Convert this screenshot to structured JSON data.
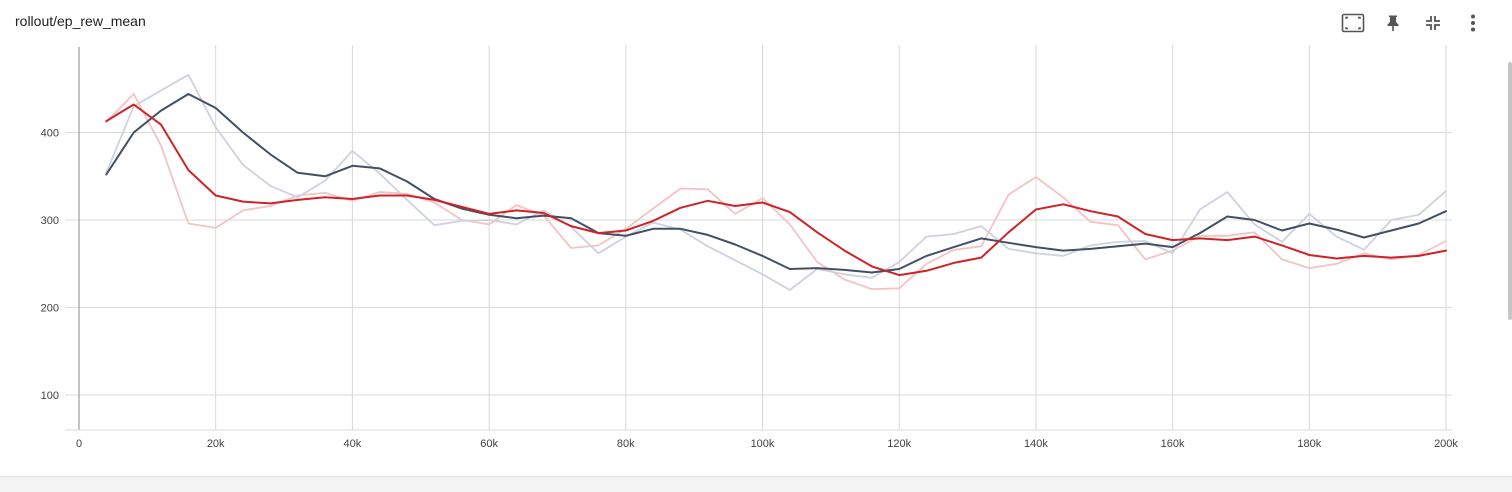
{
  "card": {
    "title": "rollout/ep_rew_mean"
  },
  "toolbar": {
    "icons": [
      "fit-domain-icon",
      "pin-icon",
      "collapse-icon",
      "more-vert-icon"
    ]
  },
  "chart_data": {
    "type": "line",
    "title": "rollout/ep_rew_mean",
    "xlabel": "",
    "ylabel": "",
    "xlim": [
      0,
      200000
    ],
    "ylim": [
      60,
      500
    ],
    "grid": true,
    "x_ticks": [
      {
        "value": 0,
        "label": "0"
      },
      {
        "value": 20000,
        "label": "20k"
      },
      {
        "value": 40000,
        "label": "40k"
      },
      {
        "value": 60000,
        "label": "60k"
      },
      {
        "value": 80000,
        "label": "80k"
      },
      {
        "value": 100000,
        "label": "100k"
      },
      {
        "value": 120000,
        "label": "120k"
      },
      {
        "value": 140000,
        "label": "140k"
      },
      {
        "value": 160000,
        "label": "160k"
      },
      {
        "value": 180000,
        "label": "180k"
      },
      {
        "value": 200000,
        "label": "200k"
      }
    ],
    "y_ticks": [
      {
        "value": 100,
        "label": "100"
      },
      {
        "value": 200,
        "label": "200"
      },
      {
        "value": 300,
        "label": "300"
      },
      {
        "value": 400,
        "label": "400"
      }
    ],
    "x": [
      4000,
      8000,
      12000,
      16000,
      20000,
      24000,
      28000,
      32000,
      36000,
      40000,
      44000,
      48000,
      52000,
      56000,
      60000,
      64000,
      68000,
      72000,
      76000,
      80000,
      84000,
      88000,
      92000,
      96000,
      100000,
      104000,
      108000,
      112000,
      116000,
      120000,
      124000,
      128000,
      132000,
      136000,
      140000,
      144000,
      148000,
      152000,
      156000,
      160000,
      164000,
      168000,
      172000,
      176000,
      180000,
      184000,
      188000,
      192000,
      196000,
      200000
    ],
    "series": [
      {
        "key": "red_raw",
        "color": "#f4c3c3",
        "width": 1.8,
        "values": [
          412,
          444,
          385,
          296,
          291,
          311,
          316,
          328,
          331,
          322,
          332,
          330,
          320,
          300,
          295,
          317,
          305,
          268,
          271,
          290,
          313,
          336,
          335,
          307,
          325,
          295,
          252,
          232,
          221,
          222,
          250,
          266,
          270,
          329,
          349,
          326,
          298,
          294,
          255,
          265,
          282,
          282,
          286,
          255,
          245,
          250,
          262,
          255,
          260,
          276
        ]
      },
      {
        "key": "navy_raw",
        "color": "#ced2df",
        "width": 1.8,
        "values": [
          354,
          430,
          448,
          466,
          406,
          363,
          339,
          326,
          345,
          379,
          353,
          323,
          294,
          299,
          300,
          295,
          311,
          292,
          262,
          281,
          297,
          289,
          270,
          254,
          238,
          220,
          244,
          238,
          234,
          252,
          281,
          284,
          293,
          267,
          262,
          259,
          271,
          275,
          276,
          262,
          312,
          332,
          295,
          275,
          307,
          281,
          266,
          300,
          306,
          333
        ]
      },
      {
        "key": "navy_smoothed",
        "color": "#425066",
        "width": 2,
        "values": [
          352,
          400,
          425,
          444,
          428,
          400,
          375,
          354,
          350,
          362,
          359,
          344,
          324,
          313,
          306,
          302,
          305,
          302,
          285,
          282,
          290,
          290,
          283,
          272,
          259,
          244,
          245,
          243,
          240,
          244,
          259,
          269,
          279,
          274,
          269,
          265,
          267,
          270,
          273,
          269,
          285,
          304,
          300,
          288,
          296,
          289,
          280,
          288,
          296,
          310
        ]
      },
      {
        "key": "red_smoothed",
        "color": "#cc2428",
        "width": 2,
        "values": [
          413,
          432,
          409,
          357,
          328,
          321,
          319,
          323,
          326,
          324,
          328,
          328,
          323,
          315,
          307,
          311,
          308,
          293,
          285,
          288,
          299,
          314,
          322,
          316,
          320,
          309,
          286,
          265,
          247,
          237,
          242,
          251,
          257,
          286,
          312,
          318,
          310,
          304,
          284,
          277,
          279,
          277,
          281,
          271,
          260,
          256,
          259,
          257,
          259,
          265
        ]
      }
    ]
  }
}
